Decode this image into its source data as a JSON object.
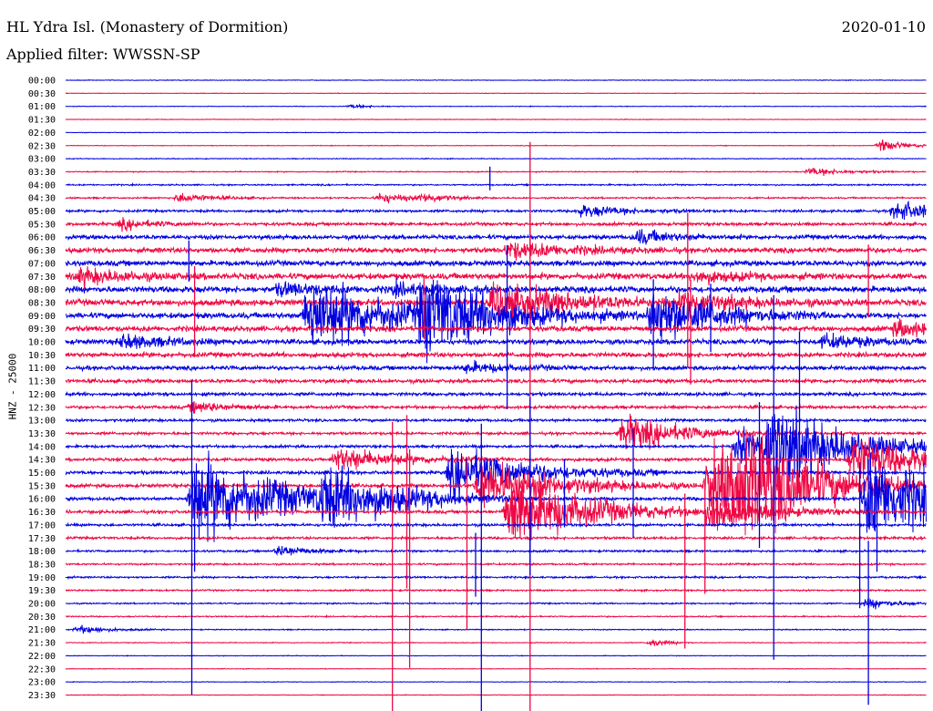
{
  "header": {
    "station": "HL Ydra Isl. (Monastery of Dormition)",
    "date": "2020-01-10",
    "filter": "Applied filter: WWSSN-SP"
  },
  "colors": {
    "trace_a": "#0000e0",
    "trace_b": "#ee0844",
    "text": "#000000",
    "background": "#ffffff"
  },
  "chart_data": {
    "type": "helicorder",
    "ylabel": "HNZ - 25000",
    "time_labels": [
      "00:00",
      "00:30",
      "01:00",
      "01:30",
      "02:00",
      "02:30",
      "03:00",
      "03:30",
      "04:00",
      "04:30",
      "05:00",
      "05:30",
      "06:00",
      "06:30",
      "07:00",
      "07:30",
      "08:00",
      "08:30",
      "09:00",
      "09:30",
      "10:00",
      "10:30",
      "11:00",
      "11:30",
      "12:00",
      "12:30",
      "13:00",
      "13:30",
      "14:00",
      "14:30",
      "15:00",
      "15:30",
      "16:00",
      "16:30",
      "17:00",
      "17:30",
      "18:00",
      "18:30",
      "19:00",
      "19:30",
      "20:00",
      "20:30",
      "21:00",
      "21:30",
      "22:00",
      "22:30",
      "23:00",
      "23:30"
    ],
    "row_minutes": 30,
    "trace_colors": [
      "blue",
      "red"
    ],
    "row_noise_levels": [
      0.3,
      0.3,
      0.3,
      0.3,
      0.3,
      0.3,
      0.4,
      0.5,
      0.7,
      0.8,
      1.2,
      1.5,
      2.0,
      2.5,
      2.6,
      3.0,
      3.0,
      3.0,
      2.8,
      2.6,
      2.4,
      2.3,
      2.0,
      1.8,
      1.6,
      1.5,
      1.3,
      1.3,
      1.3,
      1.5,
      1.6,
      1.7,
      1.6,
      1.5,
      1.3,
      1.2,
      1.0,
      0.9,
      0.9,
      0.8,
      0.7,
      0.6,
      0.5,
      0.4,
      0.3,
      0.3,
      0.3,
      0.3
    ],
    "events": [
      {
        "row": 2,
        "minute": 10,
        "amplitude": 2,
        "duration_min": 0.6
      },
      {
        "row": 5,
        "minute": 28.5,
        "amplitude": 6,
        "duration_min": 0.8
      },
      {
        "row": 7,
        "minute": 26,
        "amplitude": 4,
        "duration_min": 1.2
      },
      {
        "row": 9,
        "minute": 4,
        "amplitude": 5,
        "duration_min": 1.0
      },
      {
        "row": 9,
        "minute": 11,
        "amplitude": 5,
        "duration_min": 1.0
      },
      {
        "row": 9,
        "minute": 12.5,
        "amplitude": 4,
        "duration_min": 0.8
      },
      {
        "row": 10,
        "minute": 18,
        "amplitude": 6,
        "duration_min": 1.5
      },
      {
        "row": 10,
        "minute": 29,
        "amplitude": 10,
        "duration_min": 1.5
      },
      {
        "row": 11,
        "minute": 2,
        "amplitude": 5,
        "duration_min": 1.0
      },
      {
        "row": 12,
        "minute": 20,
        "amplitude": 7,
        "duration_min": 1.2
      },
      {
        "row": 13,
        "minute": 15.5,
        "amplitude": 8,
        "duration_min": 2.0
      },
      {
        "row": 15,
        "minute": 0.5,
        "amplitude": 8,
        "duration_min": 1.5
      },
      {
        "row": 15,
        "minute": 22,
        "amplitude": 6,
        "duration_min": 1.5
      },
      {
        "row": 16,
        "minute": 7.5,
        "amplitude": 6,
        "duration_min": 1.5
      },
      {
        "row": 16,
        "minute": 11.5,
        "amplitude": 5,
        "duration_min": 1.5
      },
      {
        "row": 17,
        "minute": 15,
        "amplitude": 20,
        "duration_min": 2.5
      },
      {
        "row": 17,
        "minute": 21.5,
        "amplitude": 10,
        "duration_min": 2.0
      },
      {
        "row": 18,
        "minute": 8.5,
        "amplitude": 40,
        "duration_min": 2.5
      },
      {
        "row": 18,
        "minute": 12.5,
        "amplitude": 38,
        "duration_min": 2.5
      },
      {
        "row": 18,
        "minute": 20.5,
        "amplitude": 30,
        "duration_min": 2.0
      },
      {
        "row": 19,
        "minute": 29,
        "amplitude": 8,
        "duration_min": 1.5
      },
      {
        "row": 20,
        "minute": 2,
        "amplitude": 7,
        "duration_min": 1.5
      },
      {
        "row": 20,
        "minute": 26.5,
        "amplitude": 7,
        "duration_min": 1.5
      },
      {
        "row": 22,
        "minute": 14,
        "amplitude": 5,
        "duration_min": 1.5
      },
      {
        "row": 25,
        "minute": 4.5,
        "amplitude": 6,
        "duration_min": 1.0
      },
      {
        "row": 27,
        "minute": 19.5,
        "amplitude": 18,
        "duration_min": 2.0
      },
      {
        "row": 28,
        "minute": 23.5,
        "amplitude": 18,
        "duration_min": 2.5
      },
      {
        "row": 28,
        "minute": 24.5,
        "amplitude": 35,
        "duration_min": 2.5
      },
      {
        "row": 29,
        "minute": 9.5,
        "amplitude": 12,
        "duration_min": 2.0
      },
      {
        "row": 29,
        "minute": 27.5,
        "amplitude": 25,
        "duration_min": 2.5
      },
      {
        "row": 30,
        "minute": 13.5,
        "amplitude": 25,
        "duration_min": 2.5
      },
      {
        "row": 31,
        "minute": 14.5,
        "amplitude": 25,
        "duration_min": 2.5
      },
      {
        "row": 31,
        "minute": 22.5,
        "amplitude": 45,
        "duration_min": 2.5
      },
      {
        "row": 31,
        "minute": 23.5,
        "amplitude": 25,
        "duration_min": 2.5
      },
      {
        "row": 31,
        "minute": 23.7,
        "amplitude": 12,
        "duration_min": 2.0
      },
      {
        "row": 32,
        "minute": 4.5,
        "amplitude": 45,
        "duration_min": 3.0
      },
      {
        "row": 32,
        "minute": 9,
        "amplitude": 25,
        "duration_min": 2.5
      },
      {
        "row": 32,
        "minute": 28,
        "amplitude": 45,
        "duration_min": 3.0
      },
      {
        "row": 33,
        "minute": 15.5,
        "amplitude": 40,
        "duration_min": 2.5
      },
      {
        "row": 33,
        "minute": 22.5,
        "amplitude": 15,
        "duration_min": 2.0
      },
      {
        "row": 36,
        "minute": 7.5,
        "amplitude": 6,
        "duration_min": 1.0
      },
      {
        "row": 40,
        "minute": 28,
        "amplitude": 5,
        "duration_min": 1.0
      },
      {
        "row": 42,
        "minute": 0.5,
        "amplitude": 4,
        "duration_min": 1.0
      },
      {
        "row": 43,
        "minute": 20.5,
        "amplitude": 4,
        "duration_min": 0.5
      }
    ],
    "spikes": [
      {
        "row": 8,
        "minute": 14.8,
        "up": 20,
        "down": 6
      },
      {
        "row": 11,
        "minute": 16.2,
        "up": 90,
        "down": 120
      },
      {
        "row": 13,
        "minute": 16.2,
        "up": 40,
        "down": 520
      },
      {
        "row": 14,
        "minute": 4.3,
        "up": 25,
        "down": 20
      },
      {
        "row": 14,
        "minute": 15.4,
        "up": 20,
        "down": 160
      },
      {
        "row": 15,
        "minute": 21.7,
        "up": 70,
        "down": 100
      },
      {
        "row": 15,
        "minute": 28,
        "up": 35,
        "down": 45
      },
      {
        "row": 17,
        "minute": 4.5,
        "up": 40,
        "down": 60
      },
      {
        "row": 17,
        "minute": 12.5,
        "up": 30,
        "down": 40
      },
      {
        "row": 17,
        "minute": 21.8,
        "up": 25,
        "down": 90
      },
      {
        "row": 18,
        "minute": 20.5,
        "up": 40,
        "down": 60
      },
      {
        "row": 18,
        "minute": 22.5,
        "up": 35,
        "down": 40
      },
      {
        "row": 22,
        "minute": 24.7,
        "up": 80,
        "down": 320
      },
      {
        "row": 22,
        "minute": 25.6,
        "up": 40,
        "down": 120
      },
      {
        "row": 24,
        "minute": 4.4,
        "up": 15,
        "down": 330
      },
      {
        "row": 26,
        "minute": 16.2,
        "up": 25,
        "down": 170
      },
      {
        "row": 26,
        "minute": 24.2,
        "up": 20,
        "down": 140
      },
      {
        "row": 27,
        "minute": 11.9,
        "up": 20,
        "down": 170
      },
      {
        "row": 28,
        "minute": 14.5,
        "up": 25,
        "down": 300
      },
      {
        "row": 28,
        "minute": 19.8,
        "up": 20,
        "down": 100
      },
      {
        "row": 28,
        "minute": 24.7,
        "up": 30,
        "down": 60
      },
      {
        "row": 30,
        "minute": 16.2,
        "up": 20,
        "down": 100
      },
      {
        "row": 30,
        "minute": 17.4,
        "up": 15,
        "down": 60
      },
      {
        "row": 30,
        "minute": 28,
        "up": 15,
        "down": 60
      },
      {
        "row": 31,
        "minute": 11.4,
        "up": 70,
        "down": 330
      },
      {
        "row": 31,
        "minute": 12,
        "up": 40,
        "down": 200
      },
      {
        "row": 32,
        "minute": 4.5,
        "up": 30,
        "down": 80
      },
      {
        "row": 32,
        "minute": 27.7,
        "up": 40,
        "down": 120
      },
      {
        "row": 32,
        "minute": 28.3,
        "up": 25,
        "down": 80
      },
      {
        "row": 33,
        "minute": 14,
        "up": 60,
        "down": 130
      },
      {
        "row": 33,
        "minute": 21.6,
        "up": 20,
        "down": 150
      },
      {
        "row": 33,
        "minute": 22.3,
        "up": 25,
        "down": 90
      },
      {
        "row": 36,
        "minute": 14.3,
        "up": 20,
        "down": 50
      },
      {
        "row": 38,
        "minute": 28,
        "up": 40,
        "down": 140
      }
    ]
  }
}
